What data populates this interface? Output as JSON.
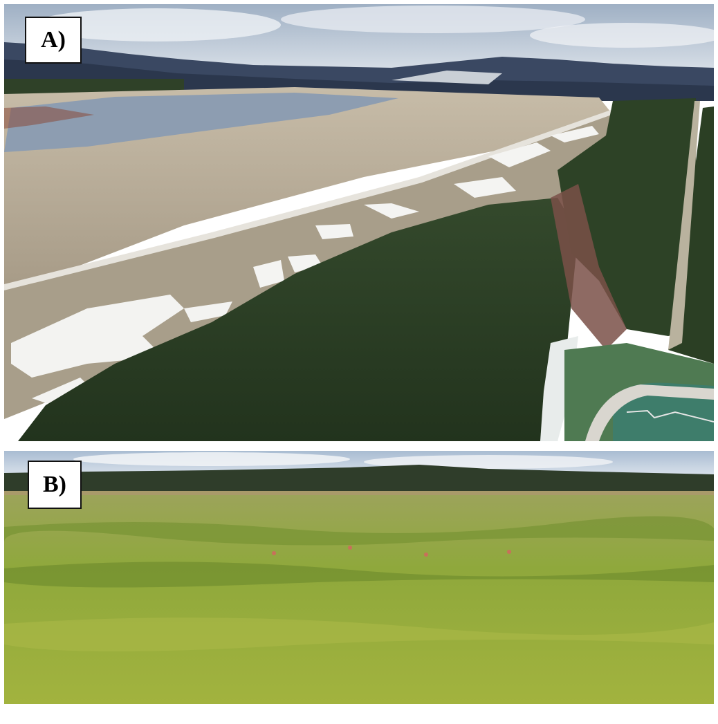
{
  "panels": [
    {
      "id": "A",
      "label": "A)"
    },
    {
      "id": "B",
      "label": "B)"
    }
  ],
  "colors": {
    "sky": "#c9d3df",
    "mountains": "#2d3a52",
    "lake": "#8e9eb2",
    "tailings": "#b6ab98",
    "snow": "#f4f4f2",
    "forest": "#2c3f25",
    "pond": "#3f7f6d",
    "grass": "#92a83a"
  }
}
